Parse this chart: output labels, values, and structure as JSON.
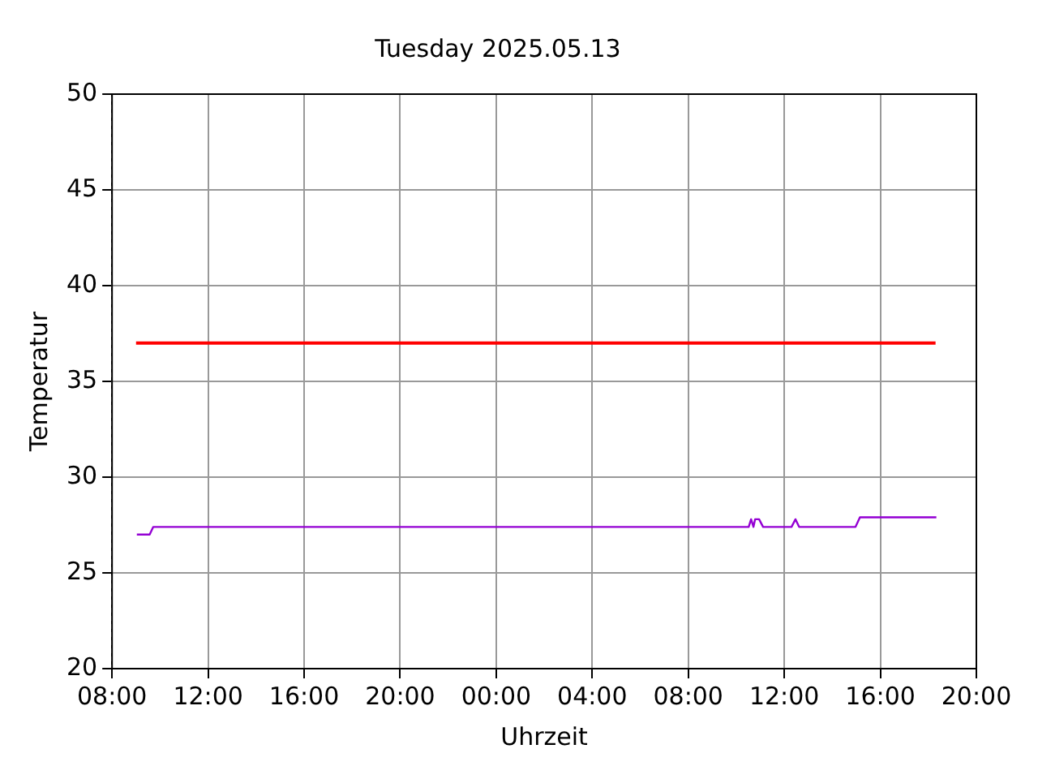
{
  "chart_data": {
    "type": "line",
    "title": "Tuesday 2025.05.13",
    "xlabel": "Uhrzeit",
    "ylabel": "Temperatur",
    "xlim": [
      "2025-05-13T08:00",
      "2025-05-14T20:00"
    ],
    "xticks": [
      {
        "value": "2025-05-13T08:00",
        "label": "08:00"
      },
      {
        "value": "2025-05-13T12:00",
        "label": "12:00"
      },
      {
        "value": "2025-05-13T16:00",
        "label": "16:00"
      },
      {
        "value": "2025-05-13T20:00",
        "label": "20:00"
      },
      {
        "value": "2025-05-14T00:00",
        "label": "00:00"
      },
      {
        "value": "2025-05-14T04:00",
        "label": "04:00"
      },
      {
        "value": "2025-05-14T08:00",
        "label": "08:00"
      },
      {
        "value": "2025-05-14T12:00",
        "label": "12:00"
      },
      {
        "value": "2025-05-14T16:00",
        "label": "16:00"
      },
      {
        "value": "2025-05-14T20:00",
        "label": "20:00"
      }
    ],
    "ylim": [
      20,
      50
    ],
    "yticks": [
      20,
      25,
      30,
      35,
      40,
      45,
      50
    ],
    "grid": true,
    "legend": false,
    "marker": "none",
    "line_style": "solid",
    "series": [
      {
        "color": "#ff0000",
        "x": [
          "2025-05-13T09:00",
          "2025-05-14T18:18"
        ],
        "values": [
          37,
          37
        ]
      },
      {
        "color": "#9400d3",
        "x": [
          "2025-05-13T09:02",
          "2025-05-13T09:34",
          "2025-05-13T09:43",
          "2025-05-14T10:31",
          "2025-05-14T10:37",
          "2025-05-14T10:43",
          "2025-05-14T10:47",
          "2025-05-14T10:57",
          "2025-05-14T11:07",
          "2025-05-14T12:18",
          "2025-05-14T12:28",
          "2025-05-14T12:37",
          "2025-05-14T14:58",
          "2025-05-14T15:09",
          "2025-05-14T18:20"
        ],
        "values": [
          27.0,
          27.0,
          27.4,
          27.4,
          27.8,
          27.4,
          27.8,
          27.8,
          27.4,
          27.4,
          27.8,
          27.4,
          27.4,
          27.9,
          27.9
        ]
      }
    ]
  }
}
